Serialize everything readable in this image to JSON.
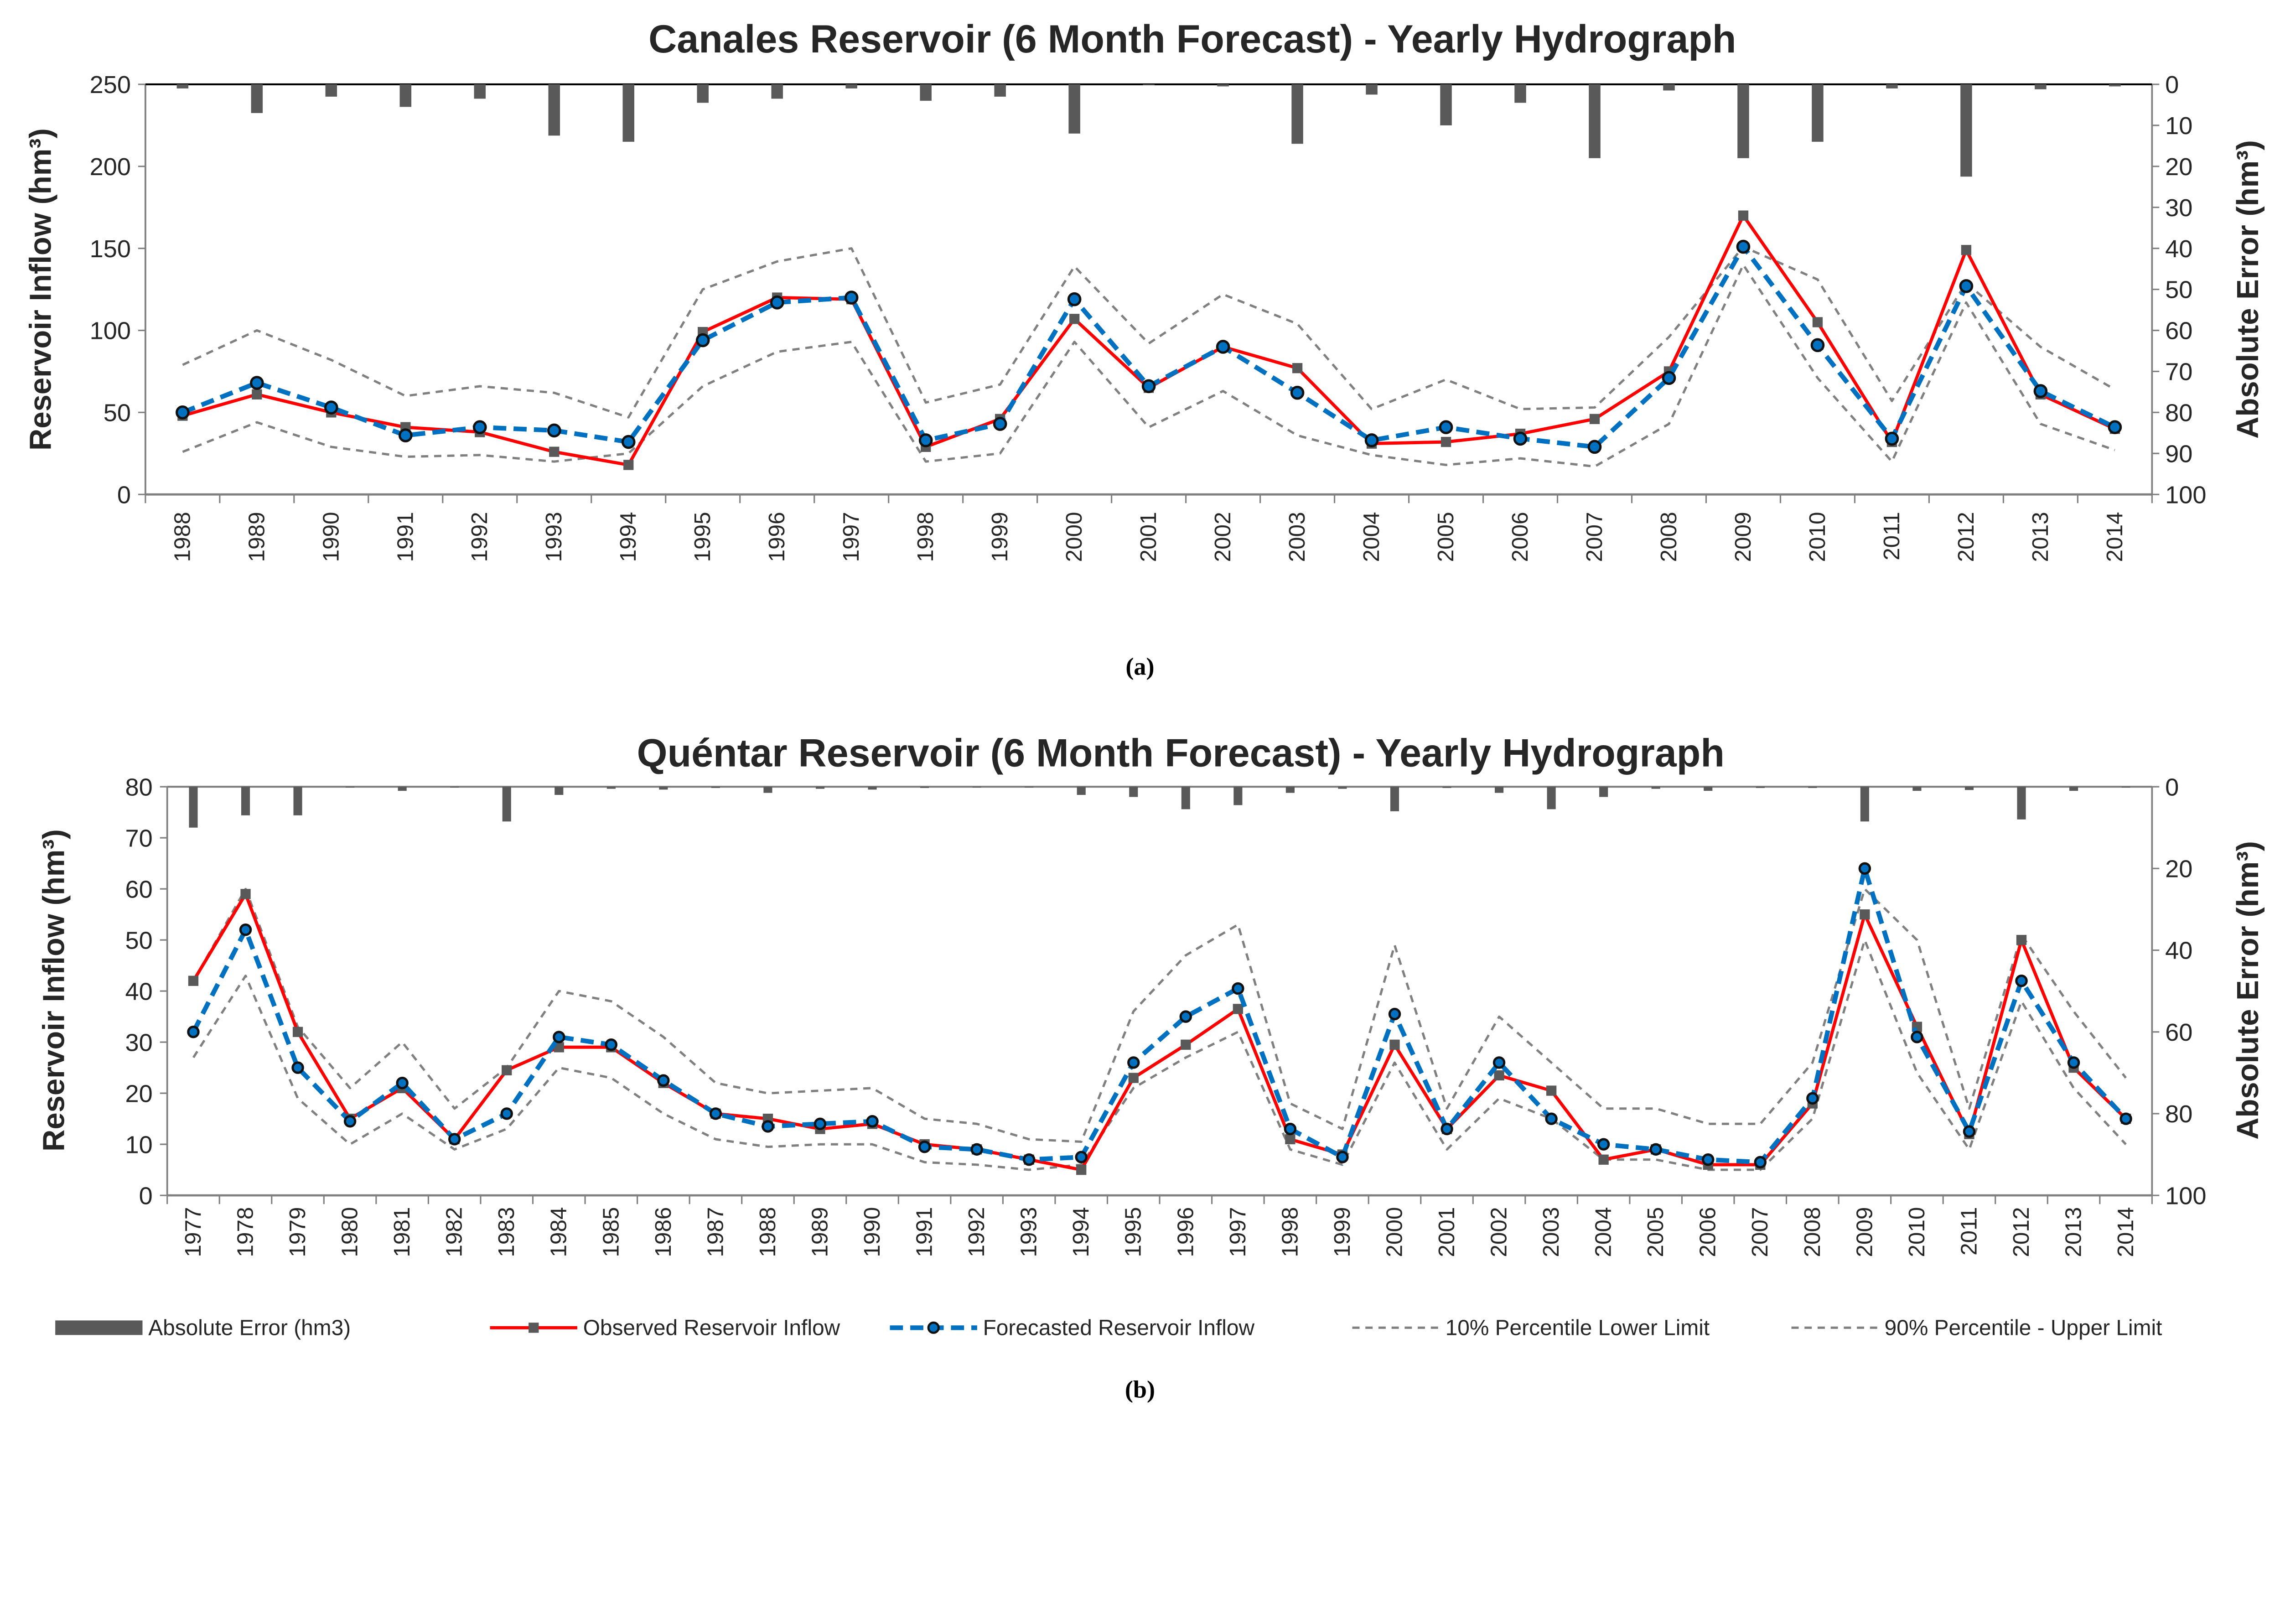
{
  "colors": {
    "observed": "#ff0000",
    "forecast": "#0070c0",
    "percentile": "#808080",
    "error": "#595959",
    "marker": "#595959"
  },
  "legend": [
    {
      "key": "error",
      "label": "Absolute Error (hm3)"
    },
    {
      "key": "observed",
      "label": "Observed Reservoir Inflow"
    },
    {
      "key": "forecast",
      "label": "Forecasted Reservoir Inflow"
    },
    {
      "key": "lower",
      "label": "10% Percentile Lower Limit"
    },
    {
      "key": "upper",
      "label": "90% Percentile - Upper Limit"
    }
  ],
  "chart_data": [
    {
      "type": "line",
      "caption": "(a)",
      "title": "Canales Reservoir (6 Month Forecast) - Yearly Hydrograph",
      "ylabel": "Reservoir Inflow (hm³)",
      "y2label": "Absolute Error (hm³)",
      "ylim": [
        0,
        250
      ],
      "yticks": [
        0,
        50,
        100,
        150,
        200,
        250
      ],
      "y2lim": [
        0,
        100
      ],
      "y2ticks": [
        0,
        10,
        20,
        30,
        40,
        50,
        60,
        70,
        80,
        90,
        100
      ],
      "y2_inverted": true,
      "grid": false,
      "legend_position": "bottom",
      "categories": [
        "1988",
        "1989",
        "1990",
        "1991",
        "1992",
        "1993",
        "1994",
        "1995",
        "1996",
        "1997",
        "1998",
        "1999",
        "2000",
        "2001",
        "2002",
        "2003",
        "2004",
        "2005",
        "2006",
        "2007",
        "2008",
        "2009",
        "2010",
        "2011",
        "2012",
        "2013",
        "2014"
      ],
      "series": [
        {
          "name": "Absolute Error (hm3)",
          "key": "error",
          "type": "bar",
          "axis": "right",
          "values": [
            1,
            7,
            3,
            5.5,
            3.5,
            12.5,
            14,
            4.5,
            3.5,
            1,
            4,
            3,
            12,
            0.2,
            0.5,
            14.5,
            2.5,
            10,
            4.5,
            18,
            1.5,
            18,
            14,
            1,
            22.5,
            1.2,
            0.5
          ]
        },
        {
          "name": "Observed Reservoir Inflow",
          "key": "observed",
          "type": "line",
          "values": [
            48,
            61,
            50,
            41,
            38,
            26,
            18,
            99,
            120,
            119,
            29,
            46,
            107,
            65,
            90,
            77,
            31,
            32,
            37,
            46,
            75,
            170,
            105,
            32,
            149,
            61,
            40
          ]
        },
        {
          "name": "Forecasted Reservoir Inflow",
          "key": "forecast",
          "type": "line",
          "values": [
            50,
            68,
            53,
            36,
            41,
            39,
            32,
            94,
            117,
            120,
            33,
            43,
            119,
            66,
            90,
            62,
            33,
            41,
            34,
            29,
            71,
            151,
            91,
            34,
            127,
            63,
            41
          ]
        },
        {
          "name": "10% Percentile Lower Limit",
          "key": "lower",
          "type": "line",
          "values": [
            26,
            44,
            29,
            23,
            24,
            20,
            25,
            66,
            87,
            93,
            20,
            25,
            93,
            41,
            63,
            36,
            24,
            18,
            22,
            17,
            43,
            140,
            71,
            20,
            117,
            43,
            27
          ]
        },
        {
          "name": "90% Percentile - Upper Limit",
          "key": "upper",
          "type": "line",
          "values": [
            79,
            100,
            82,
            60,
            66,
            62,
            47,
            125,
            142,
            150,
            56,
            67,
            139,
            92,
            122,
            104,
            52,
            70,
            52,
            53,
            96,
            151,
            131,
            57,
            129,
            90,
            64
          ]
        }
      ]
    },
    {
      "type": "line",
      "caption": "(b)",
      "title": "Quéntar Reservoir (6 Month Forecast) - Yearly Hydrograph",
      "ylabel": "Reservoir Inflow (hm³)",
      "y2label": "Absolute Error (hm³)",
      "ylim": [
        0,
        80
      ],
      "yticks": [
        0,
        10,
        20,
        30,
        40,
        50,
        60,
        70,
        80
      ],
      "y2lim": [
        0,
        100
      ],
      "y2ticks": [
        0,
        20,
        40,
        60,
        80,
        100
      ],
      "y2_inverted": true,
      "grid": false,
      "legend_position": "bottom",
      "categories": [
        "1977",
        "1978",
        "1979",
        "1980",
        "1981",
        "1982",
        "1983",
        "1984",
        "1985",
        "1986",
        "1987",
        "1988",
        "1989",
        "1990",
        "1991",
        "1992",
        "1993",
        "1994",
        "1995",
        "1996",
        "1997",
        "1998",
        "1999",
        "2000",
        "2001",
        "2002",
        "2003",
        "2004",
        "2005",
        "2006",
        "2007",
        "2008",
        "2009",
        "2010",
        "2011",
        "2012",
        "2013",
        "2014"
      ],
      "series": [
        {
          "name": "Absolute Error (hm3)",
          "key": "error",
          "type": "bar",
          "axis": "right",
          "values": [
            10,
            7,
            7,
            0.2,
            1,
            0.2,
            8.5,
            2,
            0.5,
            0.7,
            0.3,
            1.5,
            0.5,
            0.7,
            0.3,
            0.1,
            0.2,
            2,
            2.5,
            5.5,
            4.5,
            1.5,
            0.5,
            6,
            0.3,
            1.5,
            5.5,
            2.5,
            0.5,
            1,
            0.3,
            0.3,
            8.5,
            1,
            0.8,
            8,
            1,
            0.1
          ]
        },
        {
          "name": "Observed Reservoir Inflow",
          "key": "observed",
          "type": "line",
          "values": [
            42,
            59,
            32,
            15,
            21,
            11,
            24.5,
            29,
            29,
            22,
            16,
            15,
            13,
            14,
            10,
            9,
            7,
            5,
            23,
            29.5,
            36.5,
            11,
            8,
            29.5,
            13,
            23.5,
            20.5,
            7,
            9,
            6,
            6,
            18,
            55,
            33,
            12,
            50,
            25,
            15
          ]
        },
        {
          "name": "Forecasted Reservoir Inflow",
          "key": "forecast",
          "type": "line",
          "values": [
            32,
            52,
            25,
            14.5,
            22,
            11,
            16,
            31,
            29.5,
            22.5,
            16,
            13.5,
            14,
            14.5,
            9.5,
            9,
            7,
            7.5,
            26,
            35,
            40.5,
            13,
            7.5,
            35.5,
            13,
            26,
            15,
            10,
            9,
            7,
            6.5,
            19,
            64,
            31,
            12.5,
            42,
            26,
            15
          ]
        },
        {
          "name": "10% Percentile Lower Limit",
          "key": "lower",
          "type": "line",
          "values": [
            27,
            43,
            19,
            10,
            16,
            9,
            13,
            25,
            23,
            16,
            11,
            9.5,
            10,
            10,
            6.5,
            6,
            5,
            6,
            21,
            27,
            32,
            9,
            6,
            26,
            9,
            19,
            15,
            7,
            7,
            5,
            5,
            15,
            50,
            24,
            9,
            38,
            21,
            10
          ]
        },
        {
          "name": "90% Percentile - Upper Limit",
          "key": "upper",
          "type": "line",
          "values": [
            42,
            60,
            33,
            21,
            30,
            17,
            25,
            40,
            38,
            31,
            22,
            20,
            20.5,
            21,
            15,
            14,
            11,
            10.5,
            36,
            47,
            53,
            18,
            13,
            49,
            17,
            35,
            26,
            17,
            17,
            14,
            14,
            26,
            60,
            50,
            17,
            51,
            36,
            23
          ]
        }
      ]
    }
  ]
}
